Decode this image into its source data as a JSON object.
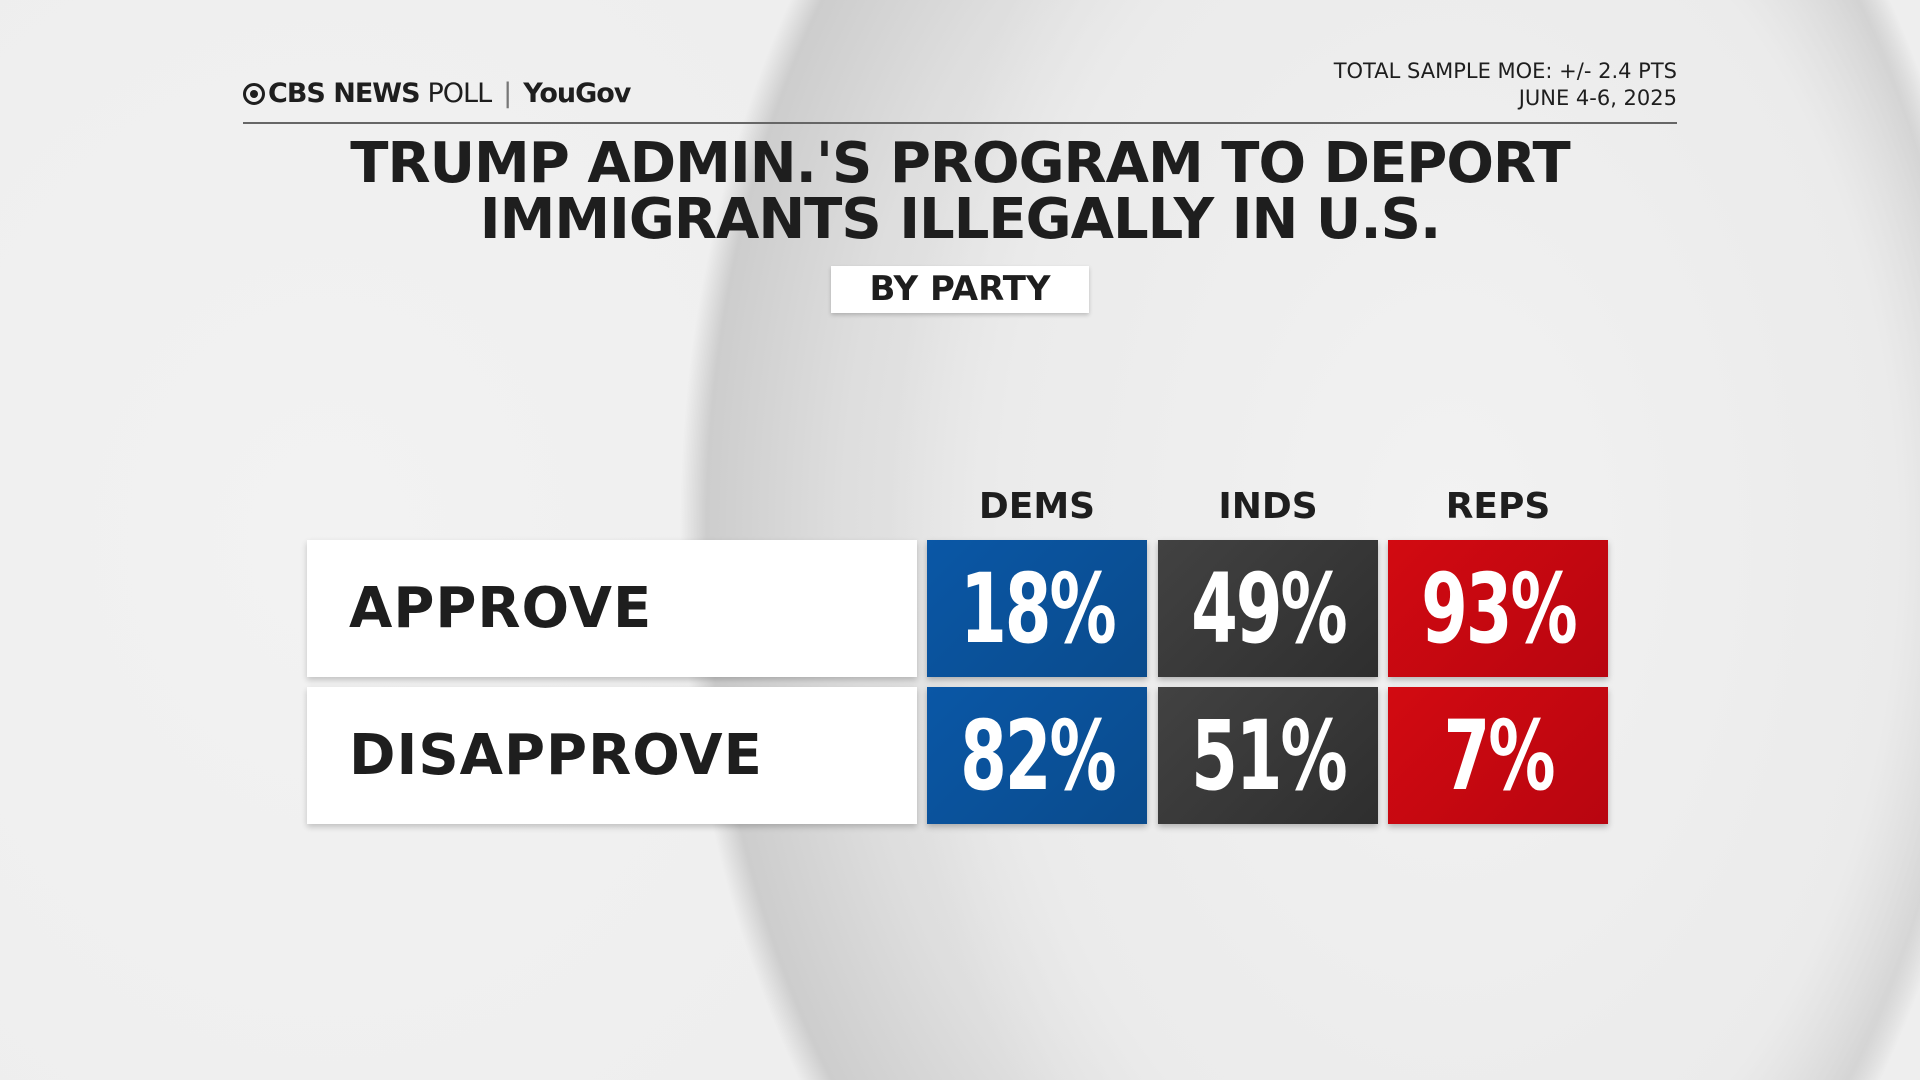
{
  "header": {
    "brand": "CBS NEWS",
    "poll": "POLL",
    "partner": "YouGov",
    "moe": "TOTAL SAMPLE MOE: +/- 2.4 PTS",
    "dates": "JUNE 4-6, 2025"
  },
  "title_line1": "TRUMP ADMIN.'S PROGRAM TO DEPORT",
  "title_line2": "IMMIGRANTS ILLEGALLY IN U.S.",
  "subtitle": "BY PARTY",
  "colors": {
    "dems": "#0a57a6",
    "inds": "#424242",
    "reps": "#d20a11"
  },
  "chart_data": {
    "type": "table",
    "columns": [
      "DEMS",
      "INDS",
      "REPS"
    ],
    "rows": [
      {
        "label": "APPROVE",
        "values": [
          "18%",
          "49%",
          "93%"
        ]
      },
      {
        "label": "DISAPPROVE",
        "values": [
          "82%",
          "51%",
          "7%"
        ]
      }
    ]
  }
}
